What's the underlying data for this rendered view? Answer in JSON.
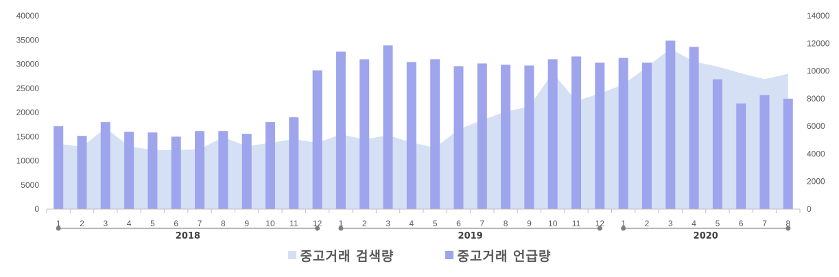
{
  "chart_data": {
    "type": "bar",
    "left_axis": {
      "ticks": [
        "0",
        "5000",
        "10000",
        "15000",
        "20000",
        "25000",
        "30000",
        "35000",
        "40000"
      ],
      "min": 0,
      "max": 40000
    },
    "right_axis": {
      "ticks": [
        "0",
        "2000",
        "4000",
        "6000",
        "8000",
        "10000",
        "12000",
        "14000"
      ],
      "min": 0,
      "max": 14000
    },
    "months": [
      "1",
      "2",
      "3",
      "4",
      "5",
      "6",
      "7",
      "8",
      "9",
      "10",
      "11",
      "12",
      "1",
      "2",
      "3",
      "4",
      "5",
      "6",
      "7",
      "8",
      "9",
      "10",
      "11",
      "12",
      "1",
      "2",
      "3",
      "4",
      "5",
      "6",
      "7",
      "8"
    ],
    "years": [
      {
        "label": "2018",
        "start": 0,
        "end": 11
      },
      {
        "label": "2019",
        "start": 12,
        "end": 23
      },
      {
        "label": "2020",
        "start": 24,
        "end": 31
      }
    ],
    "series": [
      {
        "name": "중고거래 검색량",
        "type": "area",
        "axis": "left",
        "color": "#d5e0f4",
        "values": [
          13500,
          12900,
          16800,
          13000,
          12200,
          12200,
          12400,
          14900,
          13000,
          13700,
          14500,
          13700,
          15500,
          14400,
          15300,
          13800,
          12700,
          16500,
          18400,
          20200,
          21200,
          28200,
          22400,
          23900,
          25800,
          29400,
          33200,
          30500,
          29500,
          28100,
          26900,
          28000
        ]
      },
      {
        "name": "중고거래 언급량",
        "type": "bar",
        "axis": "right",
        "color": "#9ea5ed",
        "values": [
          6000,
          5300,
          6300,
          5600,
          5550,
          5250,
          5650,
          5650,
          5450,
          6300,
          6650,
          10050,
          11400,
          10850,
          11850,
          10650,
          10850,
          10350,
          10550,
          10450,
          10400,
          10850,
          11050,
          10600,
          10950,
          10600,
          12200,
          11750,
          9400,
          7650,
          8250,
          8000
        ]
      }
    ]
  }
}
